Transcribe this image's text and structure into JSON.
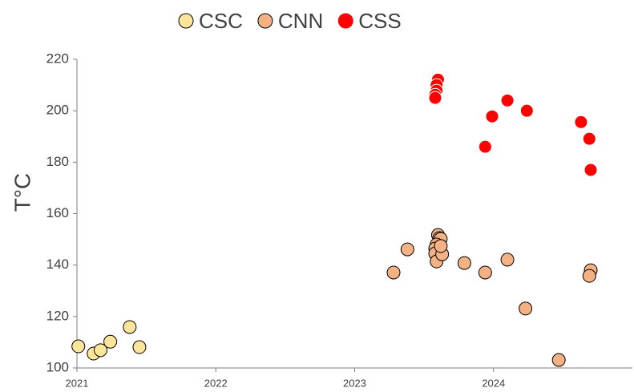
{
  "chart_data": {
    "type": "scatter",
    "ylabel": "T°C",
    "xlim": [
      2021,
      2025
    ],
    "xticks": [
      2021,
      2022,
      2023,
      2024
    ],
    "ylim": [
      100,
      220
    ],
    "yticks": [
      100,
      120,
      140,
      160,
      180,
      200,
      220
    ],
    "legend": "top",
    "series": [
      {
        "name": "CSC",
        "color": "#fde59a",
        "stroke": "#000000",
        "x": [
          2021.01,
          2021.12,
          2021.17,
          2021.24,
          2021.38,
          2021.45
        ],
        "values": [
          108.4,
          105.6,
          106.9,
          110.2,
          115.9,
          108.1
        ]
      },
      {
        "name": "CNN",
        "color": "#f4b183",
        "stroke": "#000000",
        "x": [
          2023.28,
          2023.38,
          2023.6,
          2023.61,
          2023.61,
          2023.62,
          2023.59,
          2023.58,
          2023.58,
          2023.59,
          2023.63,
          2023.62,
          2023.79,
          2023.94,
          2024.1,
          2024.23,
          2024.47,
          2024.7,
          2024.69
        ],
        "values": [
          137.1,
          146.1,
          151.7,
          150.5,
          148.6,
          150.2,
          148.0,
          146.4,
          144.5,
          141.4,
          144.2,
          147.4,
          140.8,
          137.1,
          142.1,
          123.1,
          103.1,
          138.0,
          135.8
        ]
      },
      {
        "name": "CSS",
        "color": "#ff0000",
        "stroke": "#ffffff",
        "x": [
          2023.6,
          2023.59,
          2023.59,
          2023.58,
          2023.58,
          2023.99,
          2023.94,
          2024.1,
          2024.24,
          2024.63,
          2024.69,
          2024.7
        ],
        "values": [
          212.1,
          210.0,
          207.8,
          206.2,
          205.0,
          197.8,
          186.0,
          204.0,
          200.0,
          195.6,
          189.1,
          177.0
        ]
      }
    ]
  }
}
